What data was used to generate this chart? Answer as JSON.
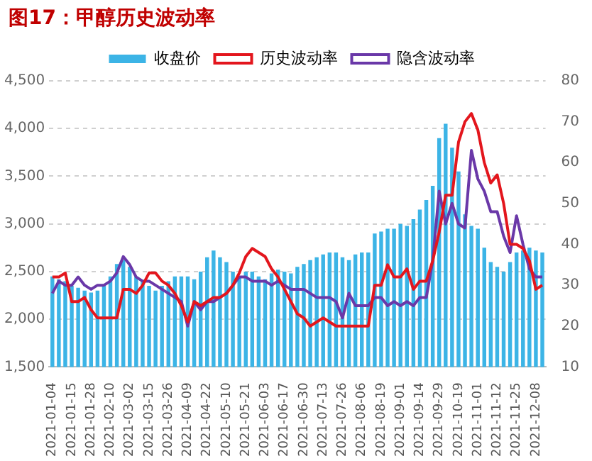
{
  "chart_data": {
    "type": "bar",
    "title": "图17：甲醇历史波动率",
    "categories": [
      "2021-01-04",
      null,
      null,
      "2021-01-15",
      null,
      null,
      "2021-01-28",
      null,
      null,
      "2021-02-10",
      null,
      null,
      "2021-03-02",
      null,
      null,
      "2021-03-15",
      null,
      null,
      "2021-03-26",
      null,
      null,
      "2021-04-09",
      null,
      null,
      "2021-04-22",
      null,
      null,
      "2021-05-10",
      null,
      null,
      "2021-05-21",
      null,
      null,
      "2021-06-03",
      null,
      null,
      "2021-06-17",
      null,
      null,
      "2021-06-30",
      null,
      null,
      "2021-07-13",
      null,
      null,
      "2021-07-26",
      null,
      null,
      "2021-08-06",
      null,
      null,
      "2021-08-19",
      null,
      null,
      "2021-09-01",
      null,
      null,
      "2021-09-14",
      null,
      null,
      "2021-09-29",
      null,
      null,
      "2021-10-19",
      null,
      null,
      "2021-11-01",
      null,
      null,
      "2021-11-12",
      null,
      null,
      "2021-11-25",
      null,
      null,
      "2021-12-08",
      null
    ],
    "series": [
      {
        "name": "收盘价",
        "color": "#3cb4e6",
        "values": [
          2450,
          2420,
          2400,
          2350,
          2330,
          2300,
          2280,
          2300,
          2350,
          2450,
          2580,
          2620,
          2550,
          2450,
          2400,
          2350,
          2300,
          2350,
          2400,
          2450,
          2450,
          2450,
          2420,
          2500,
          2650,
          2720,
          2650,
          2600,
          2500,
          2450,
          2500,
          2500,
          2450,
          2420,
          2480,
          2520,
          2500,
          2480,
          2550,
          2580,
          2620,
          2650,
          2680,
          2700,
          2700,
          2650,
          2620,
          2680,
          2700,
          2700,
          2900,
          2920,
          2950,
          2950,
          3000,
          2980,
          3050,
          3150,
          3250,
          3400,
          3900,
          4050,
          3800,
          3550,
          3100,
          2980,
          2950,
          2750,
          2600,
          2550,
          2500,
          2600,
          2700,
          2720,
          2750,
          2720,
          2700
        ]
      },
      {
        "name": "历史波动率",
        "type": "line",
        "axis": "y2",
        "color": "#e3161d",
        "values": [
          32,
          32,
          33,
          26,
          26,
          27,
          24,
          22,
          22,
          22,
          22,
          29,
          29,
          28,
          30,
          33,
          33,
          31,
          30,
          28,
          25,
          21,
          26,
          25,
          26,
          27,
          27,
          28,
          30,
          33,
          37,
          39,
          38,
          37,
          34,
          32,
          29,
          26,
          23,
          22,
          20,
          21,
          22,
          21,
          20,
          20,
          20,
          20,
          20,
          20,
          30,
          30,
          35,
          32,
          32,
          34,
          29,
          31,
          31,
          36,
          43,
          52,
          52,
          65,
          70,
          72,
          68,
          60,
          55,
          57,
          50,
          40,
          40,
          39,
          36,
          29,
          30
        ]
      },
      {
        "name": "隐含波动率",
        "type": "line",
        "axis": "y2",
        "color": "#6a38a8",
        "values": [
          28,
          31,
          30,
          30,
          32,
          30,
          29,
          30,
          30,
          31,
          33,
          37,
          35,
          32,
          31,
          31,
          30,
          29,
          28,
          27,
          26,
          20,
          26,
          24,
          26,
          26,
          27,
          28,
          30,
          32,
          32,
          31,
          31,
          31,
          30,
          31,
          30,
          29,
          29,
          29,
          28,
          27,
          27,
          27,
          26,
          22,
          28,
          25,
          25,
          25,
          27,
          27,
          25,
          26,
          25,
          26,
          25,
          27,
          27,
          36,
          53,
          45,
          50,
          45,
          44,
          63,
          56,
          53,
          48,
          48,
          42,
          38,
          47,
          40,
          34,
          32,
          32
        ]
      }
    ],
    "ylim": [
      1500,
      4500
    ],
    "yticks": [
      {
        "value": 1500,
        "label": "1,500"
      },
      {
        "value": 2000,
        "label": "2,000"
      },
      {
        "value": 2500,
        "label": "2,500"
      },
      {
        "value": 3000,
        "label": "3,000"
      },
      {
        "value": 3500,
        "label": "3,500"
      },
      {
        "value": 4000,
        "label": "4,000"
      },
      {
        "value": 4500,
        "label": "4,500"
      }
    ],
    "y2lim": [
      10,
      80
    ],
    "y2ticks": [
      10,
      20,
      30,
      40,
      50,
      60,
      70,
      80
    ],
    "grid": "y",
    "legend": "top",
    "marker": "none",
    "line_style": "solid"
  }
}
